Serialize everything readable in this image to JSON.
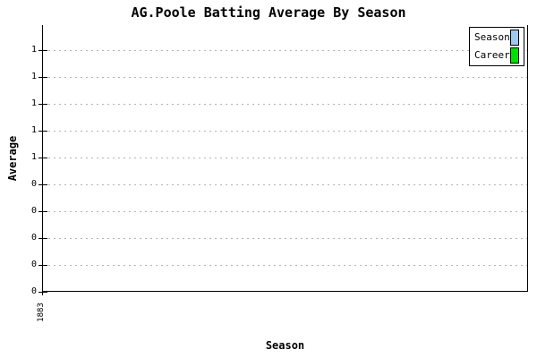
{
  "page": {
    "title": "AG.Poole Batting Average By Season"
  },
  "chart_data": {
    "type": "bar",
    "title": "AG.Poole Batting Average By Season",
    "xlabel": "Season",
    "ylabel": "Average",
    "categories": [
      "1883"
    ],
    "series": [
      {
        "name": "Season",
        "color": "#A0C8EC",
        "values": [
          0
        ]
      },
      {
        "name": "Career",
        "color": "#00E000",
        "values": [
          0
        ]
      }
    ],
    "ylim": [
      0,
      1
    ],
    "y_tick_step": 0.1,
    "grid": "horizontal dashed",
    "legend_position": "top-right",
    "legend_entries": [
      "Season",
      "Career"
    ],
    "bars_visible": false
  },
  "axes": {
    "y_label": "Average",
    "x_label": "Season",
    "y_tick_labels": [
      "1",
      "1",
      "1",
      "1",
      "1",
      "0",
      "0",
      "0",
      "0",
      "0"
    ],
    "x_tick_labels": [
      "1883"
    ]
  },
  "legend": {
    "items": [
      {
        "label": "Season",
        "color": "#A0C8EC"
      },
      {
        "label": "Career",
        "color": "#00E000"
      }
    ]
  },
  "colors": {
    "background": "#ffffff",
    "axis": "#000000",
    "gridline": "#b3b3b3",
    "season_swatch": "#A0C8EC",
    "career_swatch": "#00E000"
  }
}
